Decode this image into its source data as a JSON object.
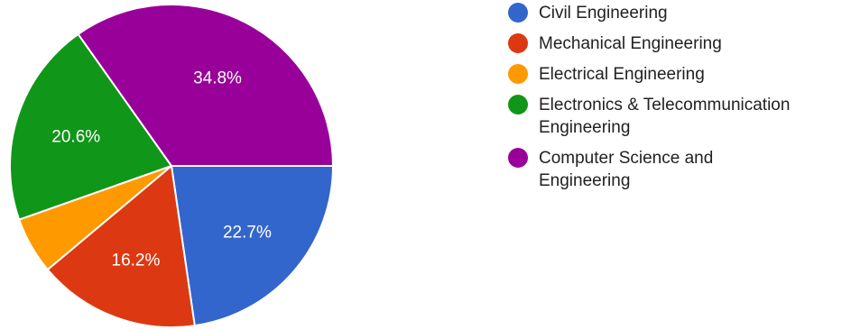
{
  "chart_data": {
    "type": "pie",
    "slices": [
      {
        "label": "Civil Engineering",
        "value": 22.7,
        "display": "22.7%",
        "color": "#3366cc"
      },
      {
        "label": "Mechanical Engineering",
        "value": 16.2,
        "display": "16.2%",
        "color": "#dc3912"
      },
      {
        "label": "Electrical Engineering",
        "value": 5.7,
        "display": "",
        "color": "#ff9900"
      },
      {
        "label": "Electronics & Telecommunication Engineering",
        "value": 20.6,
        "display": "20.6%",
        "color": "#109618"
      },
      {
        "label": "Computer Science and Engineering",
        "value": 34.8,
        "display": "34.8%",
        "color": "#990099"
      }
    ],
    "legend_position": "right"
  },
  "legend": {
    "items": [
      {
        "label": "Civil Engineering",
        "color": "#3366cc"
      },
      {
        "label": "Mechanical Engineering",
        "color": "#dc3912"
      },
      {
        "label": "Electrical Engineering",
        "color": "#ff9900"
      },
      {
        "label": "Electronics & Telecommunication Engineering",
        "color": "#109618"
      },
      {
        "label": "Computer Science and Engineering",
        "color": "#990099"
      }
    ]
  }
}
